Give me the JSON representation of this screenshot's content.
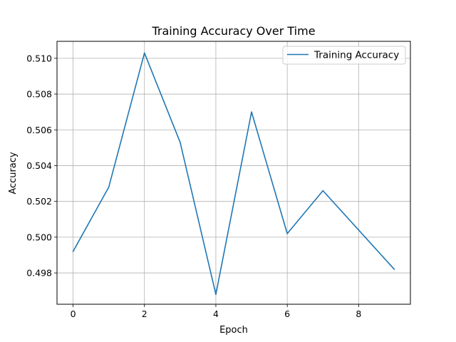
{
  "chart_data": {
    "type": "line",
    "title": "Training Accuracy Over Time",
    "xlabel": "Epoch",
    "ylabel": "Accuracy",
    "x": [
      0,
      1,
      2,
      3,
      4,
      5,
      6,
      7,
      8,
      9
    ],
    "series": [
      {
        "name": "Training Accuracy",
        "color": "#1f77b4",
        "values": [
          0.4992,
          0.5028,
          0.5103,
          0.5053,
          0.4968,
          0.507,
          0.5002,
          0.5026,
          0.5004,
          0.4982
        ]
      }
    ],
    "xlim": [
      -0.45,
      9.45
    ],
    "ylim": [
      0.49625,
      0.51095
    ],
    "x_ticks": [
      0,
      2,
      4,
      6,
      8
    ],
    "x_tick_labels": [
      "0",
      "2",
      "4",
      "6",
      "8"
    ],
    "y_ticks": [
      0.498,
      0.5,
      0.502,
      0.504,
      0.506,
      0.508,
      0.51
    ],
    "y_tick_labels": [
      "0.498",
      "0.500",
      "0.502",
      "0.504",
      "0.506",
      "0.508",
      "0.510"
    ],
    "grid": true,
    "legend_position": "top-right"
  }
}
